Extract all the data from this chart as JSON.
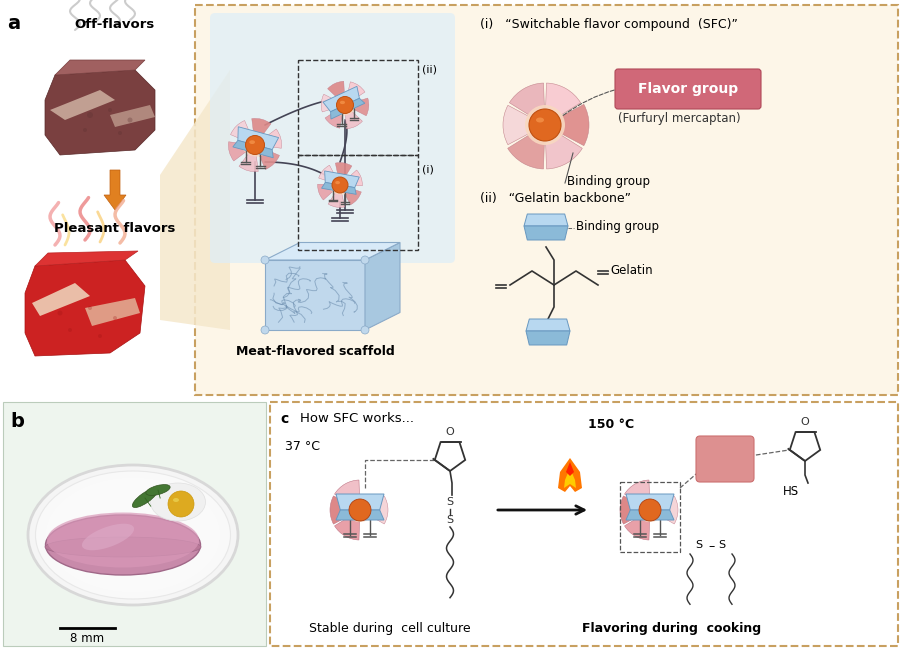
{
  "bg_color": "#ffffff",
  "panel_b_bg": "#eef5ee",
  "dashed_border_color": "#c8a060",
  "light_blue_bg": "#ddeef8",
  "label_a": "a",
  "label_b": "b",
  "label_c": "c",
  "text_off_flavors": "Off-flavors",
  "text_pleasant": "Pleasant flavors",
  "text_scaffold": "Meat-flavored scaffold",
  "text_sfc_title": "(i)   “Switchable flavor compound  (SFC)”",
  "text_furfuryl": "(Furfuryl mercaptan)",
  "text_flavor_group": "Flavor group",
  "text_binding_group": "Binding group",
  "text_gelatin_title": "(ii)   “Gelatin backbone”",
  "text_binding_group2": "Binding group",
  "text_gelatin": "Gelatin",
  "text_how_sfc": "How SFC works...",
  "text_37c": "37 °C",
  "text_150c": "150 °C",
  "text_stable": "Stable during  cell culture",
  "text_flavoring": "Flavoring during  cooking",
  "text_8mm": "8 mm",
  "text_hs": "HS",
  "color_blue_light": "#b8d8f0",
  "color_blue_mid": "#8bbad8",
  "color_blue_dark": "#6898c0",
  "color_orange_ball": "#e06820",
  "color_pink_dark": "#e08090",
  "color_pink_light": "#f0c0c8",
  "color_peach": "#f8d8c0",
  "color_flavor_box": "#d06070",
  "color_arrow_orange": "#e08820",
  "color_cream_bg": "#f5e8cc",
  "color_scaffold_line": "#8899aa"
}
